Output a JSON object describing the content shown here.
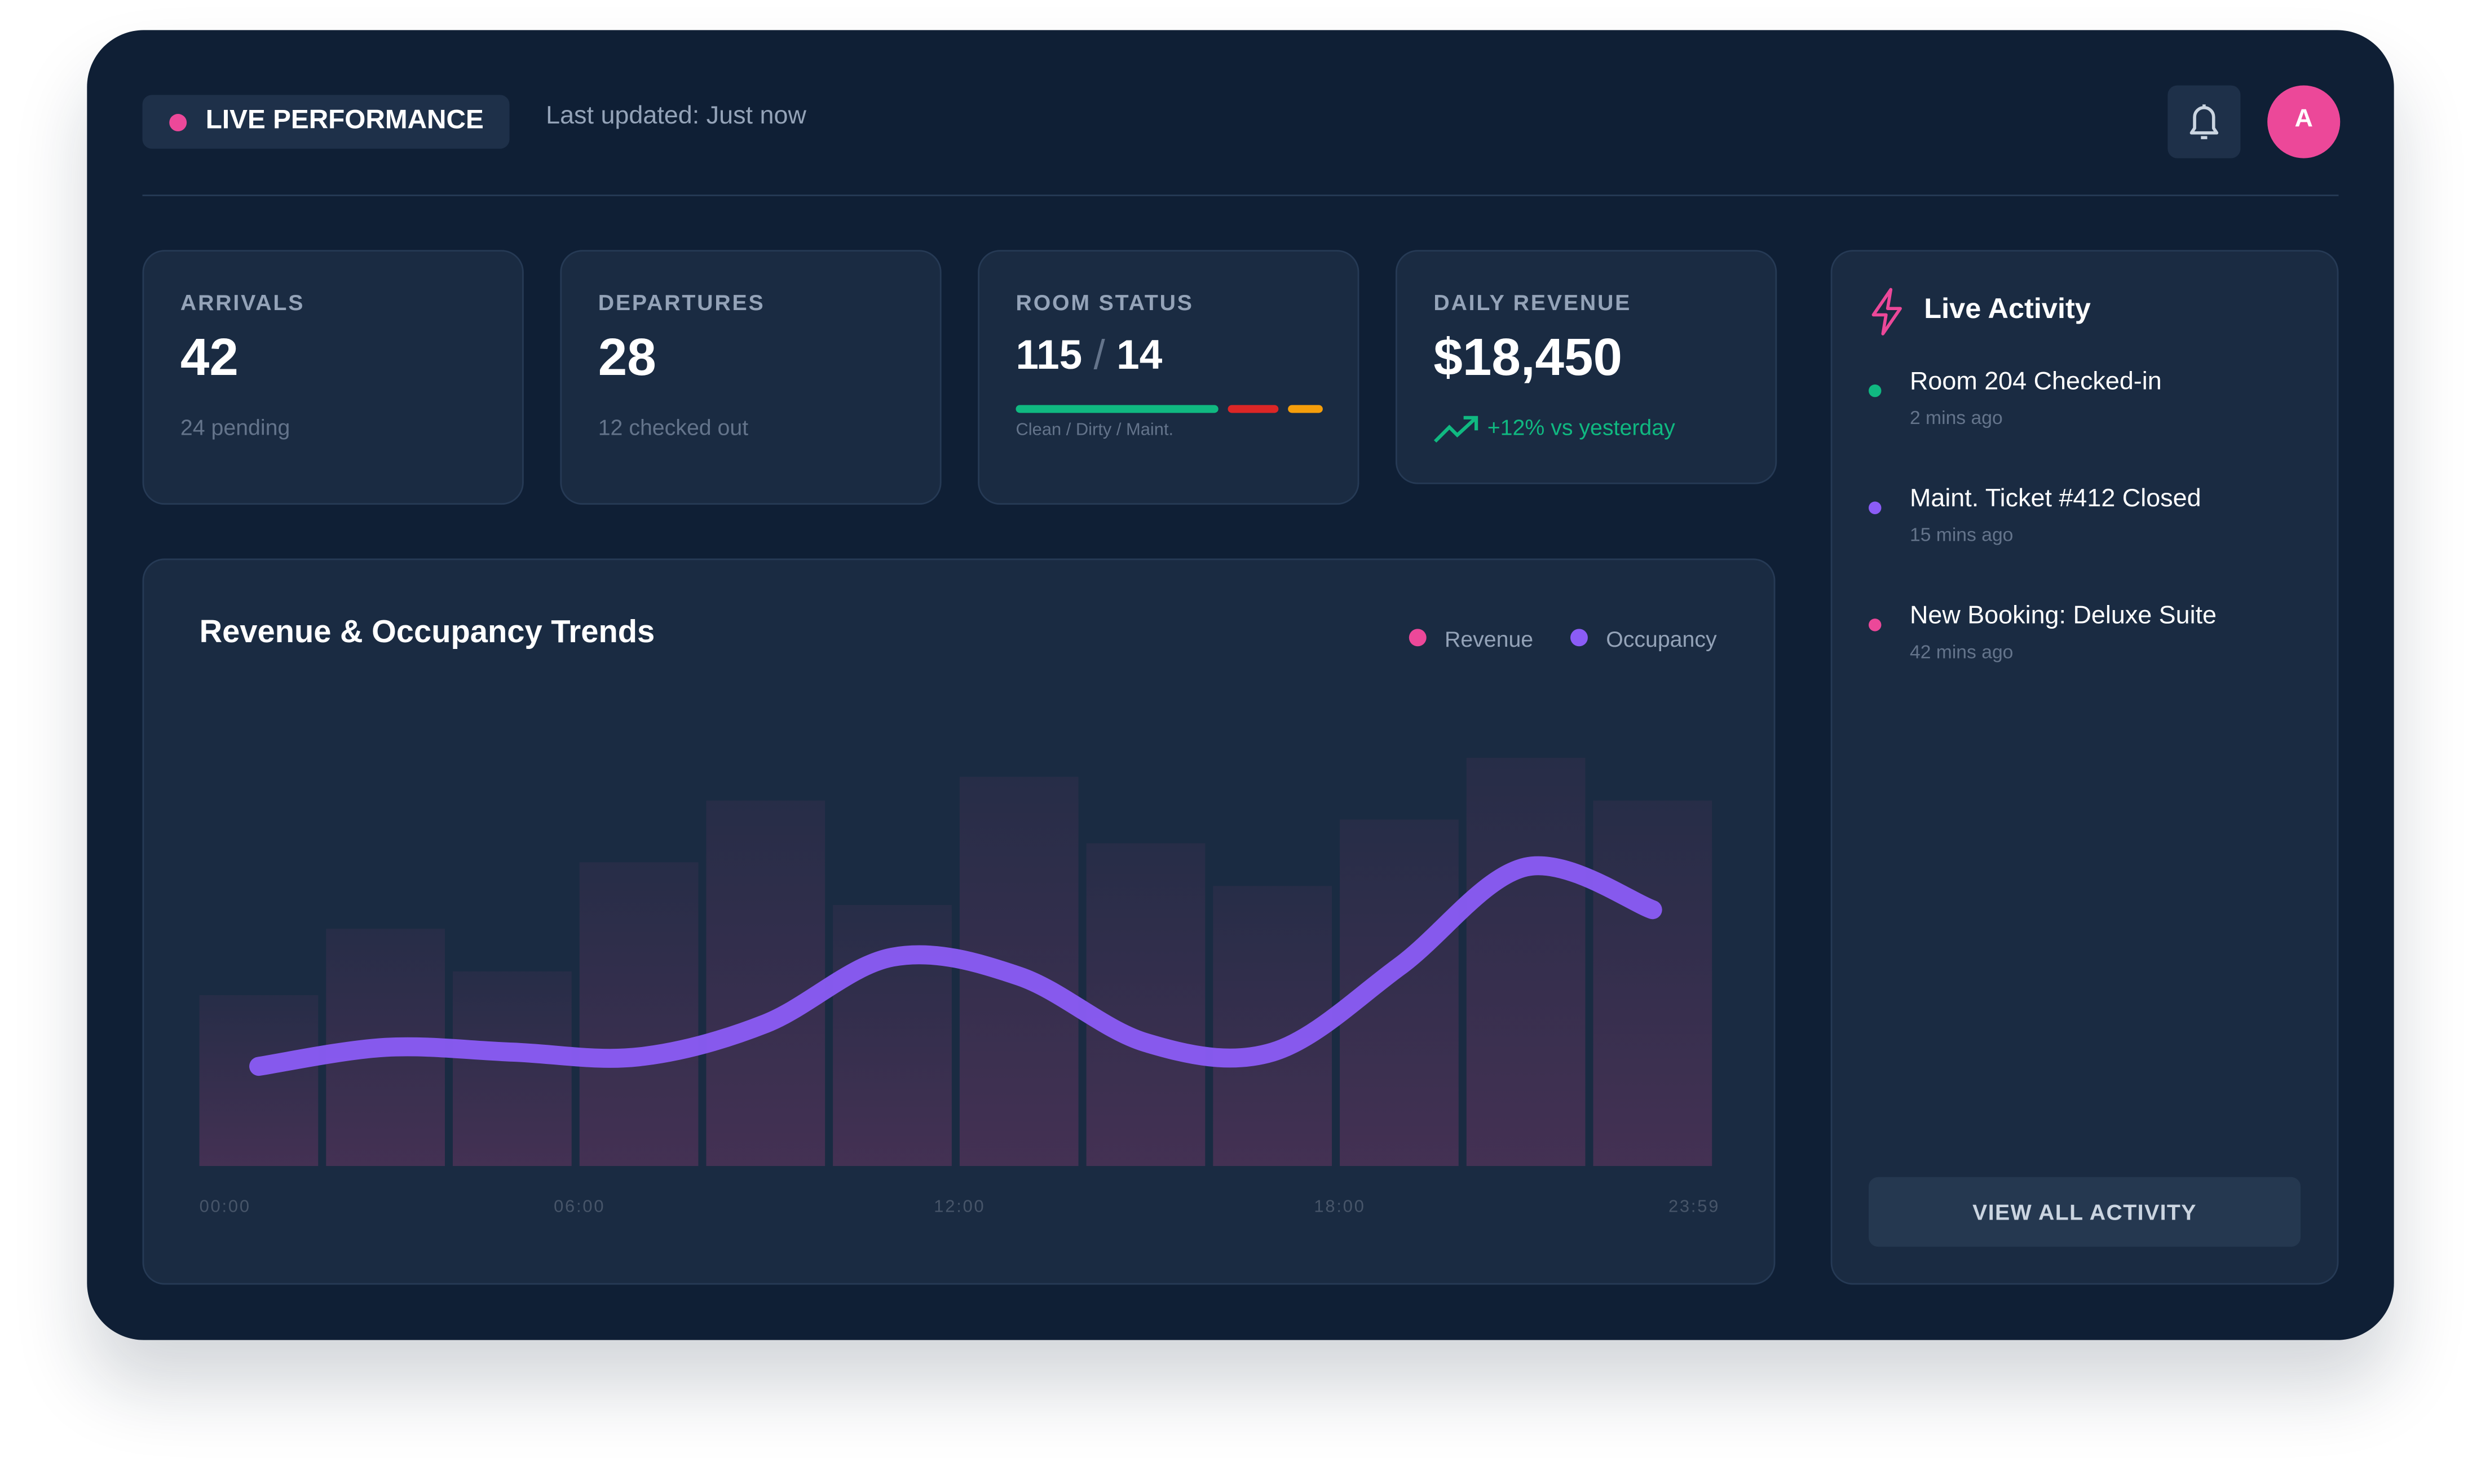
{
  "header": {
    "badge": "LIVE PERFORMANCE",
    "updated": "Last updated: Just now",
    "avatar": "A"
  },
  "stats": [
    {
      "label": "ARRIVALS",
      "value": 42,
      "note": "24 pending"
    },
    {
      "label": "DEPARTURES",
      "value": 28,
      "note": "12 checked out"
    },
    {
      "label": "ROOM STATUS",
      "clean": 115,
      "separator": "/",
      "other": 14,
      "note": "Clean / Dirty / Maint.",
      "colors": [
        "#10b981",
        "#dc2626",
        "#f59e0b"
      ]
    },
    {
      "label": "DAILY REVENUE",
      "value": "$18,450",
      "note": "+12% vs yesterday"
    }
  ],
  "chart_data": {
    "type": "bar",
    "title": "Revenue & Occupancy Trends",
    "categories": [
      null,
      null,
      null,
      null,
      null,
      null,
      null,
      null,
      null,
      null,
      null,
      null
    ],
    "x_labels": [
      "00:00",
      "06:00",
      "12:00",
      "18:00",
      "23:59"
    ],
    "ylim": [
      0,
      100
    ],
    "series": [
      {
        "name": "Revenue",
        "color": "#ec4899",
        "values": [
          36,
          50,
          41,
          64,
          77,
          55,
          82,
          68,
          59,
          73,
          86,
          77
        ]
      },
      {
        "name": "Occupancy",
        "color": "#8b5cf6",
        "type": "line",
        "values": [
          21,
          25,
          24,
          23,
          30,
          44,
          40,
          26,
          24,
          42,
          63,
          54
        ]
      }
    ]
  },
  "activity": {
    "title": "Live Activity",
    "button": "VIEW ALL ACTIVITY",
    "items": [
      {
        "title": "Room 204 Checked-in",
        "time": "2 mins ago",
        "color": "#10b981"
      },
      {
        "title": "Maint. Ticket #412 Closed",
        "time": "15 mins ago",
        "color": "#8b5cf6"
      },
      {
        "title": "New Booking: Deluxe Suite",
        "time": "42 mins ago",
        "color": "#ec4899"
      }
    ]
  }
}
